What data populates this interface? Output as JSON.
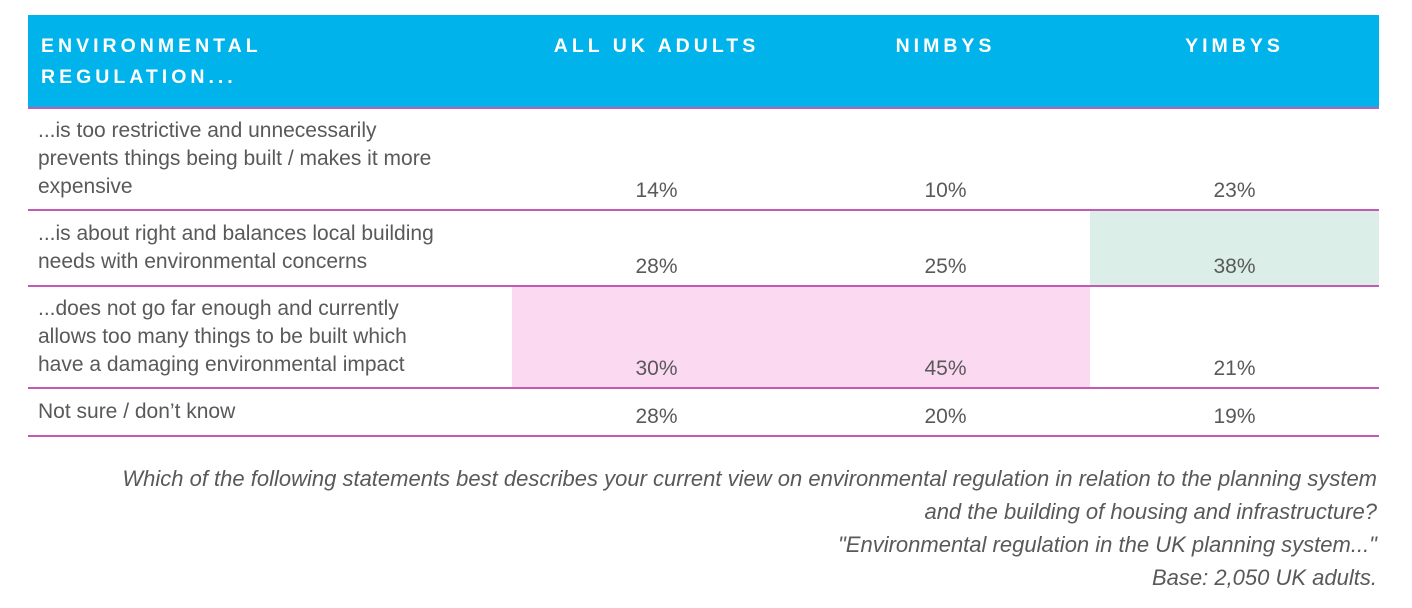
{
  "table": {
    "corner_header": "ENVIRONMENTAL REGULATION...",
    "columns": [
      "ALL UK ADULTS",
      "NIMBYS",
      "YIMBYS"
    ],
    "rows": [
      {
        "statement": "...is too restrictive and unnecessarily prevents things being built / makes it more expensive",
        "values": [
          "14%",
          "10%",
          "23%"
        ]
      },
      {
        "statement": "...is about right and balances local building needs with environmental concerns",
        "values": [
          "28%",
          "25%",
          "38%"
        ]
      },
      {
        "statement": "...does not go far enough and currently allows too many things to be built which have a damaging environmental impact",
        "values": [
          "30%",
          "45%",
          "21%"
        ]
      },
      {
        "statement": "Not sure / don’t know",
        "values": [
          "28%",
          "20%",
          "19%"
        ]
      }
    ],
    "highlights": [
      {
        "row_index": 1,
        "column": "YIMBYS",
        "color": "#DBEEE8"
      },
      {
        "row_index": 2,
        "column": "ALL UK ADULTS",
        "color": "#FBD9F1"
      },
      {
        "row_index": 2,
        "column": "NIMBYS",
        "color": "#FBD9F1"
      }
    ]
  },
  "footer": {
    "question": "Which of the following statements best describes your current view on environmental regulation in relation to the planning system and the building of housing and infrastructure?",
    "quote": "\"Environmental regulation in the UK planning system...\"",
    "base": "Base: 2,050 UK adults."
  },
  "colors": {
    "header_bg": "#00B4EB",
    "header_text": "#FFFFFF",
    "divider": "#C35AB4",
    "body_text": "#595959",
    "highlight_teal": "#DBEEE8",
    "highlight_pink": "#FBD9F1"
  },
  "chart_data": {
    "type": "table",
    "title": "Environmental regulation...",
    "categories": [
      "...is too restrictive and unnecessarily prevents things being built / makes it more expensive",
      "...is about right and balances local building needs with environmental concerns",
      "...does not go far enough and currently allows too many things to be built which have a damaging environmental impact",
      "Not sure / don’t know"
    ],
    "series": [
      {
        "name": "All UK adults",
        "values": [
          14,
          28,
          30,
          28
        ]
      },
      {
        "name": "NIMBYs",
        "values": [
          10,
          25,
          45,
          20
        ]
      },
      {
        "name": "YIMBYs",
        "values": [
          23,
          38,
          21,
          19
        ]
      }
    ],
    "unit": "%"
  }
}
